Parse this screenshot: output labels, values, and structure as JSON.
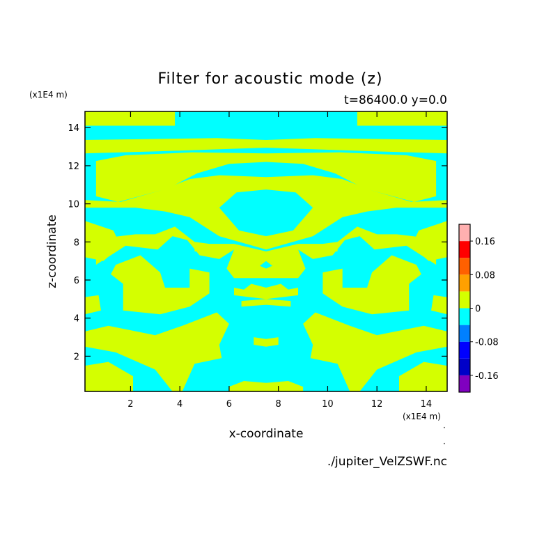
{
  "chart_data": {
    "type": "heatmap",
    "title": "Filter for acoustic mode (z)",
    "subtitle": "t=86400.0 y=0.0",
    "xlabel": "x-coordinate",
    "ylabel": "z-coordinate",
    "x_unit": "(x1E4 m)",
    "y_unit": "(x1E4 m)",
    "xlim": [
      0.15,
      14.85
    ],
    "ylim": [
      0.15,
      14.85
    ],
    "x_ticks": [
      2,
      4,
      6,
      8,
      10,
      12,
      14
    ],
    "y_ticks": [
      2,
      4,
      6,
      8,
      10,
      12,
      14
    ],
    "grid": false,
    "positive_color": "#d4ff00",
    "negative_color": "#00ffff",
    "colorbar": {
      "levels": [
        {
          "from": -0.2,
          "to": -0.16,
          "color": "#8000c0"
        },
        {
          "from": -0.16,
          "to": -0.12,
          "color": "#0000c8"
        },
        {
          "from": -0.12,
          "to": -0.08,
          "color": "#0000ff"
        },
        {
          "from": -0.08,
          "to": -0.04,
          "color": "#0080ff"
        },
        {
          "from": -0.04,
          "to": 0,
          "color": "#00ffff"
        },
        {
          "from": 0,
          "to": 0.04,
          "color": "#d4ff00"
        },
        {
          "from": 0.04,
          "to": 0.08,
          "color": "#ffa000"
        },
        {
          "from": 0.08,
          "to": 0.12,
          "color": "#ff6000"
        },
        {
          "from": 0.12,
          "to": 0.16,
          "color": "#ff0000"
        },
        {
          "from": 0.16,
          "to": 0.2,
          "color": "#ffb0b0"
        }
      ],
      "tick_labels": [
        "0.16",
        "0.08",
        "0",
        "-0.08",
        "-0.16"
      ],
      "tick_values": [
        0.16,
        0.08,
        0,
        -0.08,
        -0.16
      ]
    },
    "positive_regions_left_half": [
      [
        [
          0.15,
          14.85
        ],
        [
          3.8,
          14.85
        ],
        [
          3.8,
          14.1
        ],
        [
          0.15,
          14.1
        ]
      ],
      [
        [
          0.15,
          13.35
        ],
        [
          5.5,
          13.45
        ],
        [
          7.5,
          13.35
        ],
        [
          7.5,
          12.95
        ],
        [
          3,
          12.75
        ],
        [
          0.15,
          12.65
        ]
      ],
      [
        [
          0.6,
          12.25
        ],
        [
          1.8,
          12.55
        ],
        [
          4.5,
          12.7
        ],
        [
          7.5,
          12.65
        ],
        [
          7.5,
          12.2
        ],
        [
          6,
          12.1
        ],
        [
          4.7,
          11.6
        ],
        [
          3.5,
          10.8
        ],
        [
          1.5,
          10.1
        ],
        [
          0.6,
          10.4
        ]
      ],
      [
        [
          0.15,
          9.8
        ],
        [
          2.2,
          9.8
        ],
        [
          3.4,
          9.6
        ],
        [
          4.4,
          9.3
        ],
        [
          5.6,
          8.3
        ],
        [
          7.5,
          7.6
        ],
        [
          7.5,
          8.3
        ],
        [
          6.4,
          8.6
        ],
        [
          5.6,
          9.8
        ],
        [
          6.3,
          10.6
        ],
        [
          7.5,
          10.75
        ],
        [
          7.5,
          11.4
        ],
        [
          5.6,
          11.5
        ],
        [
          4.4,
          11.3
        ],
        [
          3.2,
          10.7
        ],
        [
          1.6,
          10.1
        ],
        [
          0.15,
          10.2
        ]
      ],
      [
        [
          0.15,
          9.1
        ],
        [
          1.3,
          8.6
        ],
        [
          1.6,
          7.8
        ],
        [
          0.9,
          7
        ],
        [
          0.15,
          7.2
        ]
      ],
      [
        [
          0.6,
          6.8
        ],
        [
          1.8,
          7.8
        ],
        [
          3.1,
          7.6
        ],
        [
          3.7,
          8.3
        ],
        [
          4.3,
          8.1
        ],
        [
          4.8,
          7.3
        ],
        [
          5.6,
          7.1
        ],
        [
          6.2,
          7.6
        ],
        [
          5.9,
          6.6
        ],
        [
          6.2,
          6.1
        ],
        [
          7.5,
          6.1
        ],
        [
          7.5,
          6.6
        ],
        [
          6.8,
          7
        ],
        [
          6.3,
          6.4
        ],
        [
          6.9,
          6.4
        ],
        [
          7.5,
          7.0
        ],
        [
          7.5,
          7.5
        ],
        [
          6.2,
          7.9
        ],
        [
          5.2,
          7.9
        ],
        [
          4.6,
          8.0
        ],
        [
          3.8,
          8.8
        ],
        [
          3,
          8.4
        ],
        [
          2.2,
          8.4
        ],
        [
          0.9,
          8.2
        ],
        [
          0.6,
          7.6
        ]
      ],
      [
        [
          1.4,
          6.8
        ],
        [
          2.4,
          7.3
        ],
        [
          3.2,
          6.4
        ],
        [
          3.4,
          5.6
        ],
        [
          4.4,
          5.6
        ],
        [
          4.4,
          6.6
        ],
        [
          5.2,
          6.4
        ],
        [
          5.2,
          5.3
        ],
        [
          4.4,
          4.6
        ],
        [
          3.2,
          4.2
        ],
        [
          1.7,
          4.4
        ],
        [
          1.7,
          5.8
        ],
        [
          1.2,
          6.3
        ]
      ],
      [
        [
          0.15,
          5.1
        ],
        [
          0.7,
          5.2
        ],
        [
          0.8,
          4.4
        ],
        [
          0.15,
          4.2
        ]
      ],
      [
        [
          0.15,
          3.3
        ],
        [
          1.1,
          3.6
        ],
        [
          3,
          3.1
        ],
        [
          4.1,
          3.6
        ],
        [
          5.5,
          4.3
        ],
        [
          6.0,
          3.7
        ],
        [
          5.6,
          2.6
        ],
        [
          5.7,
          1.9
        ],
        [
          4.6,
          1.6
        ],
        [
          4.1,
          0.15
        ],
        [
          3.7,
          0.15
        ],
        [
          3,
          1.3
        ],
        [
          1.4,
          2.2
        ],
        [
          0.15,
          2.5
        ]
      ],
      [
        [
          0.15,
          1.5
        ],
        [
          1.1,
          1.7
        ],
        [
          2.1,
          0.95
        ],
        [
          2.1,
          0.15
        ],
        [
          0.15,
          0.15
        ]
      ],
      [
        [
          6.2,
          5.2
        ],
        [
          7.5,
          5.0
        ],
        [
          7.5,
          5.6
        ],
        [
          6.9,
          5.8
        ],
        [
          6.6,
          5.5
        ],
        [
          6.2,
          5.6
        ]
      ],
      [
        [
          6.5,
          4.6
        ],
        [
          7.5,
          4.7
        ],
        [
          7.5,
          5.0
        ],
        [
          6.5,
          4.9
        ]
      ],
      [
        [
          7.0,
          3.0
        ],
        [
          7.5,
          2.9
        ],
        [
          7.5,
          2.5
        ],
        [
          7.0,
          2.6
        ]
      ],
      [
        [
          6.0,
          0.15
        ],
        [
          7.5,
          0.15
        ],
        [
          7.5,
          0.6
        ],
        [
          6.6,
          0.7
        ],
        [
          6.0,
          0.4
        ]
      ],
      [
        [
          4.6,
          7.7
        ],
        [
          5.2,
          7.7
        ],
        [
          5.2,
          7.5
        ],
        [
          4.6,
          7.5
        ]
      ]
    ]
  }
}
